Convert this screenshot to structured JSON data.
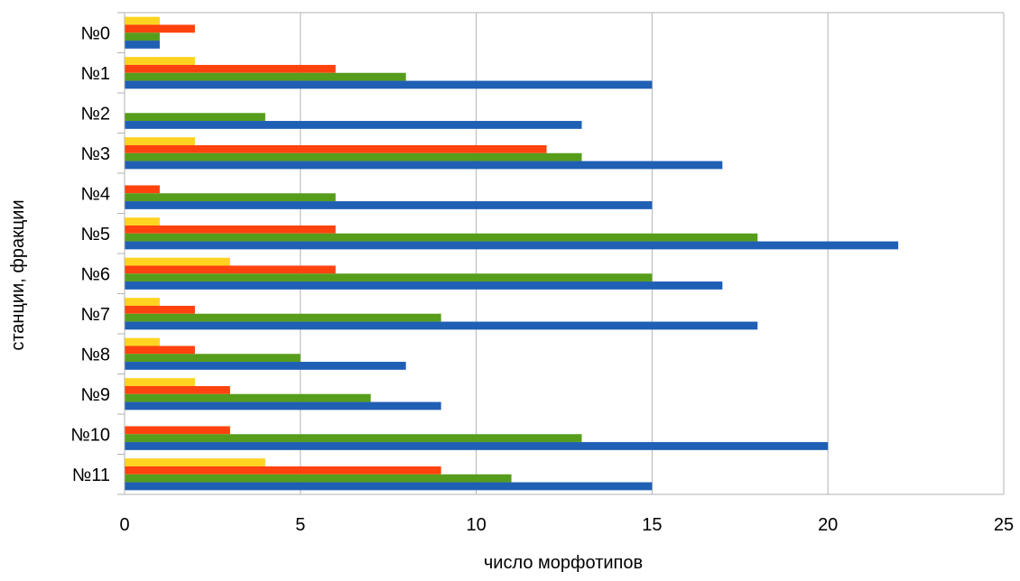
{
  "chart_data": {
    "type": "bar",
    "orientation": "horizontal",
    "categories": [
      "№0",
      "№1",
      "№2",
      "№3",
      "№4",
      "№5",
      "№6",
      "№7",
      "№8",
      "№9",
      "№10",
      "№11"
    ],
    "series": [
      {
        "color": "#ffd320",
        "values": [
          1,
          2,
          0,
          2,
          0,
          1,
          3,
          1,
          1,
          2,
          0,
          4
        ]
      },
      {
        "color": "#ff420e",
        "values": [
          2,
          6,
          0,
          12,
          1,
          6,
          6,
          2,
          2,
          3,
          3,
          9
        ]
      },
      {
        "color": "#579d1c",
        "values": [
          1,
          8,
          4,
          13,
          6,
          18,
          15,
          9,
          5,
          7,
          13,
          11
        ]
      },
      {
        "color": "#1f5fb4",
        "values": [
          1,
          15,
          13,
          17,
          15,
          22,
          17,
          18,
          8,
          9,
          20,
          15
        ]
      }
    ],
    "xlabel": "число морфотипов",
    "ylabel": "станции, фракции",
    "xlim": [
      0,
      25
    ],
    "xticks": [
      0,
      5,
      10,
      15,
      20,
      25
    ],
    "grid": true,
    "legend": "none"
  }
}
